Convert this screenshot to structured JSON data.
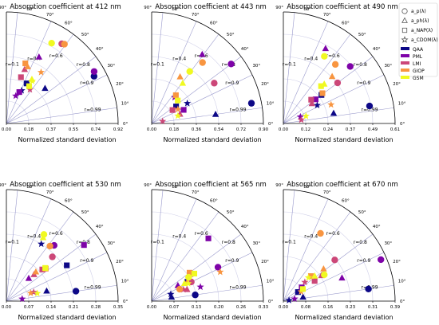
{
  "colors": {
    "QAA": "#0d0887",
    "PML": "#7e03a8",
    "LMI": "#cc4778",
    "GIOP": "#f89540",
    "GSM": "#f0f921",
    "arc": "#000000",
    "corr_line": "#9999cc",
    "std_arc": "#cfcfe8"
  },
  "legend": {
    "placement": "top-right",
    "markers": [
      {
        "symbol": "circle",
        "label": "a_p(λ)"
      },
      {
        "symbol": "triangle",
        "label": "a_ph(λ)"
      },
      {
        "symbol": "square",
        "label": "a_NAP(λ)"
      },
      {
        "symbol": "star",
        "label": "a_CDOM(λ)"
      }
    ],
    "models": [
      {
        "name": "QAA",
        "color": "#0d0887"
      },
      {
        "name": "PML",
        "color": "#7e03a8"
      },
      {
        "name": "LMI",
        "color": "#cc4778"
      },
      {
        "name": "GIOP",
        "color": "#f89540"
      },
      {
        "name": "GSM",
        "color": "#f0f921"
      }
    ]
  },
  "chart_data": [
    {
      "type": "scatter",
      "title": "Absorption coefficient at 412 nm",
      "xlabel": "Normalized standard deviation",
      "xticks": [
        "0.00",
        "0.18",
        "0.37",
        "0.55",
        "0.74",
        "0.92"
      ],
      "rmax": 0.92,
      "angle_ticks": [
        "0°",
        "10°",
        "20°",
        "30°",
        "40°",
        "50°",
        "60°",
        "70°",
        "80°",
        "90°"
      ],
      "r_labels": [
        "r=0.1",
        "r=0.4",
        "r=0.6",
        "r=0.8",
        "r=0.9",
        "r=0.99"
      ],
      "points": [
        {
          "model": "QAA",
          "param": "a_p",
          "std": 0.82,
          "r": 0.88
        },
        {
          "model": "QAA",
          "param": "a_ph",
          "std": 0.43,
          "r": 0.74
        },
        {
          "model": "QAA",
          "param": "a_NAP",
          "std": 0.37,
          "r": 0.45
        },
        {
          "model": "QAA",
          "param": "a_CDOM",
          "std": 0.3,
          "r": 0.42
        },
        {
          "model": "PML",
          "param": "a_p",
          "std": 0.84,
          "r": 0.86
        },
        {
          "model": "PML",
          "param": "a_ph",
          "std": 0.61,
          "r": 0.44
        },
        {
          "model": "PML",
          "param": "a_NAP",
          "std": 0.28,
          "r": 0.38
        },
        {
          "model": "PML",
          "param": "a_CDOM",
          "std": 0.24,
          "r": 0.32
        },
        {
          "model": "LMI",
          "param": "a_p",
          "std": 0.8,
          "r": 0.57
        },
        {
          "model": "LMI",
          "param": "a_ph",
          "std": 0.47,
          "r": 0.32
        },
        {
          "model": "LMI",
          "param": "a_NAP",
          "std": 0.4,
          "r": 0.3
        },
        {
          "model": "LMI",
          "param": "a_CDOM",
          "std": 0.34,
          "r": 0.57
        },
        {
          "model": "GIOP",
          "param": "a_p",
          "std": 0.81,
          "r": 0.59
        },
        {
          "model": "GIOP",
          "param": "a_ph",
          "std": 0.5,
          "r": 0.35
        },
        {
          "model": "GIOP",
          "param": "a_NAP",
          "std": 0.52,
          "r": 0.3
        },
        {
          "model": "GIOP",
          "param": "a_CDOM",
          "std": 0.51,
          "r": 0.56
        },
        {
          "model": "GSM",
          "param": "a_p",
          "std": 0.76,
          "r": 0.49
        },
        {
          "model": "GSM",
          "param": "a_ph",
          "std": 0.42,
          "r": 0.5
        },
        {
          "model": "GSM",
          "param": "a_NAP",
          "std": 0.36,
          "r": 0.52
        },
        {
          "model": "GSM",
          "param": "a_CDOM",
          "std": 0.41,
          "r": 0.52
        }
      ]
    },
    {
      "type": "scatter",
      "title": "Absorption coefficient at 443 nm",
      "xlabel": "Normalized standard deviation",
      "xticks": [
        "0.00",
        "0.18",
        "0.36",
        "0.54",
        "0.72",
        "0.90"
      ],
      "rmax": 0.9,
      "angle_ticks": [
        "0°",
        "10°",
        "20°",
        "30°",
        "40°",
        "50°",
        "60°",
        "70°",
        "80°",
        "90°"
      ],
      "r_labels": [
        "r=0.1",
        "r=0.4",
        "r=0.6",
        "r=0.8",
        "r=0.9",
        "r=0.99"
      ],
      "points": [
        {
          "model": "QAA",
          "param": "a_p",
          "std": 0.82,
          "r": 0.98
        },
        {
          "model": "QAA",
          "param": "a_ph",
          "std": 0.52,
          "r": 0.99
        },
        {
          "model": "QAA",
          "param": "a_NAP",
          "std": 0.24,
          "r": 0.82
        },
        {
          "model": "QAA",
          "param": "a_CDOM",
          "std": 0.33,
          "r": 0.87
        },
        {
          "model": "PML",
          "param": "a_p",
          "std": 0.8,
          "r": 0.8
        },
        {
          "model": "PML",
          "param": "a_ph",
          "std": 0.69,
          "r": 0.59
        },
        {
          "model": "PML",
          "param": "a_NAP",
          "std": 0.28,
          "r": 0.92
        },
        {
          "model": "PML",
          "param": "a_CDOM",
          "std": 0.28,
          "r": 0.66
        },
        {
          "model": "LMI",
          "param": "a_p",
          "std": 0.6,
          "r": 0.84
        },
        {
          "model": "LMI",
          "param": "a_ph",
          "std": 0.24,
          "r": 0.95
        },
        {
          "model": "LMI",
          "param": "a_NAP",
          "std": 0.2,
          "r": 0.84
        },
        {
          "model": "LMI",
          "param": "a_CDOM",
          "std": 0.09,
          "r": 0.98
        },
        {
          "model": "GIOP",
          "param": "a_p",
          "std": 0.64,
          "r": 0.64
        },
        {
          "model": "GIOP",
          "param": "a_ph",
          "std": 0.44,
          "r": 0.52
        },
        {
          "model": "GIOP",
          "param": "a_NAP",
          "std": 0.3,
          "r": 0.65
        },
        {
          "model": "GIOP",
          "param": "a_CDOM",
          "std": 0.24,
          "r": 0.88
        },
        {
          "model": "GSM",
          "param": "a_p",
          "std": 0.52,
          "r": 0.59
        },
        {
          "model": "GSM",
          "param": "a_ph",
          "std": 0.41,
          "r": 0.61
        },
        {
          "model": "GSM",
          "param": "a_NAP",
          "std": 0.28,
          "r": 0.75
        },
        {
          "model": "GSM",
          "param": "a_CDOM",
          "std": 0.22,
          "r": 0.96
        }
      ]
    },
    {
      "type": "scatter",
      "title": "Absorption coefficient at 490 nm",
      "xlabel": "Normalized standard deviation",
      "xticks": [
        "0.00",
        "0.12",
        "0.24",
        "0.37",
        "0.49",
        "0.61"
      ],
      "rmax": 0.61,
      "angle_ticks": [
        "0°",
        "10°",
        "20°",
        "30°",
        "40°",
        "50°",
        "60°",
        "70°",
        "80°",
        "90°"
      ],
      "r_labels": [
        "r=0.1",
        "r=0.4",
        "r=0.6",
        "r=0.8",
        "r=0.9",
        "r=0.99"
      ],
      "points": [
        {
          "model": "QAA",
          "param": "a_p",
          "std": 0.48,
          "r": 0.98
        },
        {
          "model": "QAA",
          "param": "a_ph",
          "std": 0.28,
          "r": 0.98
        },
        {
          "model": "QAA",
          "param": "a_NAP",
          "std": 0.26,
          "r": 0.8
        },
        {
          "model": "QAA",
          "param": "a_CDOM",
          "std": 0.21,
          "r": 0.88
        },
        {
          "model": "PML",
          "param": "a_p",
          "std": 0.48,
          "r": 0.76
        },
        {
          "model": "PML",
          "param": "a_ph",
          "std": 0.47,
          "r": 0.49
        },
        {
          "model": "PML",
          "param": "a_NAP",
          "std": 0.22,
          "r": 0.8
        },
        {
          "model": "PML",
          "param": "a_CDOM",
          "std": 0.1,
          "r": 0.93
        },
        {
          "model": "LMI",
          "param": "a_p",
          "std": 0.37,
          "r": 0.8
        },
        {
          "model": "LMI",
          "param": "a_ph",
          "std": 0.19,
          "r": 0.82
        },
        {
          "model": "LMI",
          "param": "a_NAP",
          "std": 0.2,
          "r": 0.76
        },
        {
          "model": "LMI",
          "param": "a_CDOM",
          "std": 0.1,
          "r": 0.98
        },
        {
          "model": "GIOP",
          "param": "a_p",
          "std": 0.43,
          "r": 0.66
        },
        {
          "model": "GIOP",
          "param": "a_ph",
          "std": 0.37,
          "r": 0.72
        },
        {
          "model": "GIOP",
          "param": "a_NAP",
          "std": 0.27,
          "r": 0.79
        },
        {
          "model": "GIOP",
          "param": "a_CDOM",
          "std": 0.28,
          "r": 0.93
        },
        {
          "model": "GSM",
          "param": "a_p",
          "std": 0.43,
          "r": 0.52
        },
        {
          "model": "GSM",
          "param": "a_ph",
          "std": 0.31,
          "r": 0.72
        },
        {
          "model": "GSM",
          "param": "a_NAP",
          "std": 0.29,
          "r": 0.71
        },
        {
          "model": "GSM",
          "param": "a_CDOM",
          "std": 0.13,
          "r": 0.95
        }
      ]
    },
    {
      "type": "scatter",
      "title": "Absorption coefficient at 530 nm",
      "xlabel": "Normalized standard deviation",
      "xticks": [
        "0.00",
        "0.07",
        "0.14",
        "0.21",
        "0.28",
        "0.35"
      ],
      "rmax": 0.35,
      "angle_ticks": [
        "0°",
        "10°",
        "20°",
        "30°",
        "40°",
        "50°",
        "60°",
        "70°",
        "80°",
        "90°"
      ],
      "r_labels": [
        "r=0.1",
        "r=0.4",
        "r=0.6",
        "r=0.8",
        "r=0.9",
        "r=0.99"
      ],
      "points": [
        {
          "model": "QAA",
          "param": "a_p",
          "std": 0.22,
          "r": 0.99
        },
        {
          "model": "QAA",
          "param": "a_ph",
          "std": 0.13,
          "r": 0.97
        },
        {
          "model": "QAA",
          "param": "a_NAP",
          "std": 0.22,
          "r": 0.86
        },
        {
          "model": "QAA",
          "param": "a_CDOM",
          "std": 0.21,
          "r": 0.52
        },
        {
          "model": "PML",
          "param": "a_p",
          "std": 0.23,
          "r": 0.65
        },
        {
          "model": "PML",
          "param": "a_ph",
          "std": 0.1,
          "r": 0.7
        },
        {
          "model": "PML",
          "param": "a_NAP",
          "std": 0.3,
          "r": 0.81
        },
        {
          "model": "PML",
          "param": "a_CDOM",
          "std": 0.05,
          "r": 0.99
        },
        {
          "model": "LMI",
          "param": "a_p",
          "std": 0.2,
          "r": 0.72
        },
        {
          "model": "LMI",
          "param": "a_ph",
          "std": 0.12,
          "r": 0.72
        },
        {
          "model": "LMI",
          "param": "a_NAP",
          "std": 0.15,
          "r": 0.75
        },
        {
          "model": "LMI",
          "param": "a_CDOM",
          "std": 0.09,
          "r": 0.95
        },
        {
          "model": "GIOP",
          "param": "a_p",
          "std": 0.22,
          "r": 0.62
        },
        {
          "model": "GIOP",
          "param": "a_ph",
          "std": 0.13,
          "r": 0.71
        },
        {
          "model": "GIOP",
          "param": "a_NAP",
          "std": 0.16,
          "r": 0.77
        },
        {
          "model": "GIOP",
          "param": "a_CDOM",
          "std": 0.08,
          "r": 0.95
        },
        {
          "model": "GSM",
          "param": "a_p",
          "std": 0.24,
          "r": 0.49
        },
        {
          "model": "GSM",
          "param": "a_ph",
          "std": 0.23,
          "r": 0.5
        },
        {
          "model": "GSM",
          "param": "a_NAP",
          "std": 0.16,
          "r": 0.76
        },
        {
          "model": "GSM",
          "param": "a_CDOM",
          "std": 0.1,
          "r": 0.97
        }
      ]
    },
    {
      "type": "scatter",
      "title": "Absorption coefficient at 565 nm",
      "xlabel": "Normalized standard deviation",
      "xticks": [
        "0.00",
        "0.07",
        "0.13",
        "0.20",
        "0.26",
        "0.33"
      ],
      "rmax": 0.33,
      "angle_ticks": [
        "0°",
        "10°",
        "20°",
        "30°",
        "40°",
        "50°",
        "60°",
        "70°",
        "80°",
        "90°"
      ],
      "r_labels": [
        "r=0.1",
        "r=0.4",
        "r=0.6",
        "r=0.8",
        "r=0.9",
        "r=0.99"
      ],
      "points": [
        {
          "model": "QAA",
          "param": "a_p",
          "std": 0.13,
          "r": 0.99
        },
        {
          "model": "QAA",
          "param": "a_ph",
          "std": 0.06,
          "r": 0.98
        },
        {
          "model": "QAA",
          "param": "a_NAP",
          "std": 0.12,
          "r": 0.88
        },
        {
          "model": "QAA",
          "param": "a_CDOM",
          "std": 0.06,
          "r": 0.94
        },
        {
          "model": "PML",
          "param": "a_p",
          "std": 0.22,
          "r": 0.89
        },
        {
          "model": "PML",
          "param": "a_ph",
          "std": 0.09,
          "r": 0.86
        },
        {
          "model": "PML",
          "param": "a_NAP",
          "std": 0.25,
          "r": 0.67
        },
        {
          "model": "PML",
          "param": "a_CDOM",
          "std": 0.15,
          "r": 0.96
        },
        {
          "model": "LMI",
          "param": "a_p",
          "std": 0.13,
          "r": 0.9
        },
        {
          "model": "LMI",
          "param": "a_ph",
          "std": 0.11,
          "r": 0.95
        },
        {
          "model": "LMI",
          "param": "a_NAP",
          "std": 0.14,
          "r": 0.82
        },
        {
          "model": "LMI",
          "param": "a_CDOM",
          "std": 0.1,
          "r": 0.94
        },
        {
          "model": "GIOP",
          "param": "a_p",
          "std": 0.09,
          "r": 0.92
        },
        {
          "model": "GIOP",
          "param": "a_ph",
          "std": 0.12,
          "r": 0.88
        },
        {
          "model": "GIOP",
          "param": "a_NAP",
          "std": 0.14,
          "r": 0.8
        },
        {
          "model": "GIOP",
          "param": "a_CDOM",
          "std": 0.22,
          "r": 0.92
        },
        {
          "model": "GSM",
          "param": "a_p",
          "std": 0.13,
          "r": 0.84
        },
        {
          "model": "GSM",
          "param": "a_ph",
          "std": 0.11,
          "r": 0.88
        },
        {
          "model": "GSM",
          "param": "a_NAP",
          "std": 0.15,
          "r": 0.84
        },
        {
          "model": "GSM",
          "param": "a_CDOM",
          "std": 0.12,
          "r": 0.9
        }
      ]
    },
    {
      "type": "scatter",
      "title": "Absorption coefficient at 670 nm",
      "xlabel": "Normalized standard deviation",
      "xticks": [
        "0.00",
        "0.08",
        "0.16",
        "0.23",
        "0.31",
        "0.39"
      ],
      "rmax": 0.39,
      "angle_ticks": [
        "0°",
        "10°",
        "20°",
        "30°",
        "40°",
        "50°",
        "60°",
        "70°",
        "80°",
        "90°"
      ],
      "r_labels": [
        "r=0.1",
        "r=0.4",
        "r=0.6",
        "r=0.8",
        "r=0.9",
        "r=0.99"
      ],
      "points": [
        {
          "model": "QAA",
          "param": "a_p",
          "std": 0.3,
          "r": 0.99
        },
        {
          "model": "QAA",
          "param": "a_ph",
          "std": 0.07,
          "r": 0.98
        },
        {
          "model": "QAA",
          "param": "a_NAP",
          "std": 0.06,
          "r": 0.85
        },
        {
          "model": "QAA",
          "param": "a_CDOM",
          "std": 0.02,
          "r": 0.99
        },
        {
          "model": "PML",
          "param": "a_p",
          "std": 0.37,
          "r": 0.92
        },
        {
          "model": "PML",
          "param": "a_ph",
          "std": 0.22,
          "r": 0.93
        },
        {
          "model": "PML",
          "param": "a_NAP",
          "std": 0.08,
          "r": 0.8
        },
        {
          "model": "PML",
          "param": "a_CDOM",
          "std": 0.04,
          "r": 0.98
        },
        {
          "model": "LMI",
          "param": "a_p",
          "std": 0.23,
          "r": 0.78
        },
        {
          "model": "LMI",
          "param": "a_ph",
          "std": 0.16,
          "r": 0.83
        },
        {
          "model": "LMI",
          "param": "a_NAP",
          "std": 0.13,
          "r": 0.84
        },
        {
          "model": "LMI",
          "param": "a_CDOM",
          "std": 0.1,
          "r": 0.75
        },
        {
          "model": "GIOP",
          "param": "a_p",
          "std": 0.27,
          "r": 0.48
        },
        {
          "model": "GIOP",
          "param": "a_ph",
          "std": 0.18,
          "r": 0.78
        },
        {
          "model": "GIOP",
          "param": "a_NAP",
          "std": 0.13,
          "r": 0.74
        },
        {
          "model": "GIOP",
          "param": "a_CDOM",
          "std": 0.07,
          "r": 0.88
        },
        {
          "model": "GSM",
          "param": "a_p",
          "std": 0.17,
          "r": 0.84
        },
        {
          "model": "GSM",
          "param": "a_ph",
          "std": 0.14,
          "r": 0.78
        },
        {
          "model": "GSM",
          "param": "a_NAP",
          "std": 0.08,
          "r": 0.85
        },
        {
          "model": "GSM",
          "param": "a_CDOM",
          "std": 0.12,
          "r": 0.73
        }
      ]
    }
  ]
}
